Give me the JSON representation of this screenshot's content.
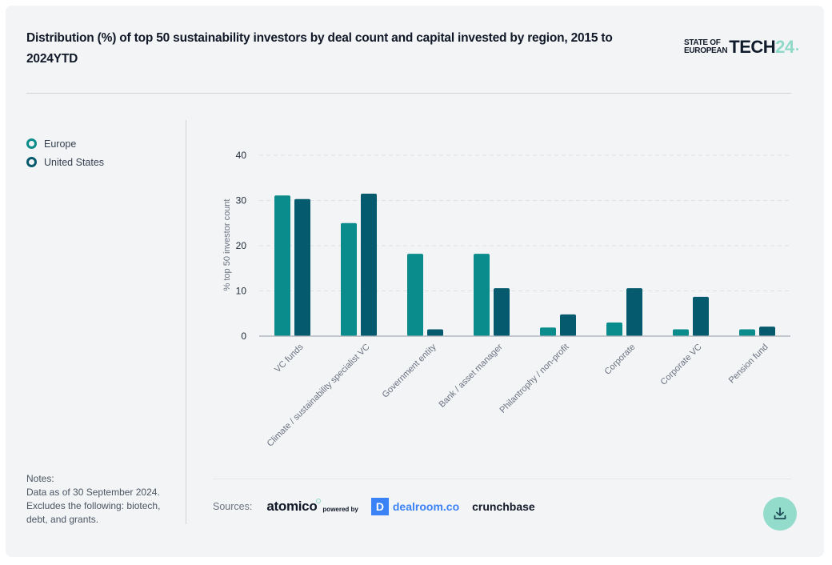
{
  "header": {
    "title": "Distribution (%) of top 50 sustainability investors by deal count and capital invested by region, 2015 to 2024YTD",
    "logo": {
      "line1": "STATE OF",
      "line2": "EUROPEAN",
      "word": "TECH",
      "year": "24"
    }
  },
  "legend": [
    {
      "label": "Europe",
      "color": "#0a8c8c"
    },
    {
      "label": "United States",
      "color": "#065a6e"
    }
  ],
  "notes": {
    "heading": "Notes:",
    "line1": "Data as of 30 September 2024.",
    "line2": "Excludes the following: biotech, debt, and grants."
  },
  "sources": {
    "label": "Sources:",
    "atomico": "atomico",
    "powered_by": "powered by",
    "dealroom": "dealroom.co",
    "dealroom_icon": "D",
    "crunchbase": "crunchbase"
  },
  "download_icon": "download-icon",
  "chart_data": {
    "type": "bar",
    "title": "Distribution (%) of top 50 sustainability investors by deal count and capital invested by region, 2015 to 2024YTD",
    "xlabel": "",
    "ylabel": "% top 50 investor count",
    "ylim": [
      0,
      40
    ],
    "yticks": [
      0,
      10,
      20,
      30,
      40
    ],
    "grid": true,
    "legend_position": "left",
    "categories": [
      "VC funds",
      "Climate / sustainability specialist VC",
      "Government entity",
      "Bank / asset manager",
      "Philantrophy / non-profit",
      "Corporate",
      "Corporate VC",
      "Pension fund"
    ],
    "series": [
      {
        "name": "Europe",
        "color": "#0a8c8c",
        "values": [
          31.1,
          25.0,
          18.2,
          18.2,
          1.9,
          3.0,
          1.5,
          1.5
        ]
      },
      {
        "name": "United States",
        "color": "#065a6e",
        "values": [
          30.3,
          31.5,
          1.5,
          10.6,
          4.8,
          10.6,
          8.7,
          2.1
        ]
      }
    ]
  }
}
